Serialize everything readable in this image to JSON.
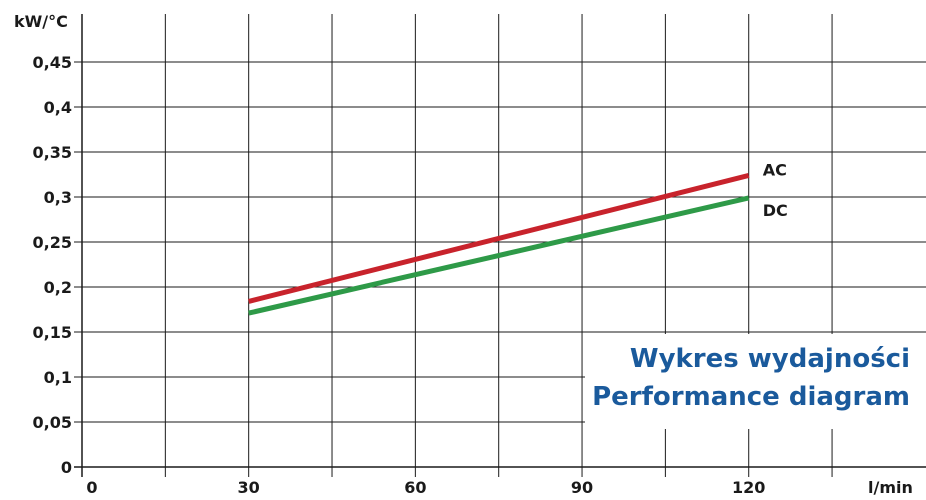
{
  "chart_data": {
    "type": "line",
    "title": "Wykres wydajności",
    "subtitle": "Performance diagram",
    "xlabel": "l/min",
    "ylabel": "kW/°C",
    "xlim": [
      0,
      150
    ],
    "ylim": [
      0,
      0.5
    ],
    "x_ticks": [
      0,
      30,
      60,
      90,
      120
    ],
    "x_tick_labels": [
      "0",
      "30",
      "60",
      "90",
      "120"
    ],
    "y_ticks": [
      0,
      0.05,
      0.1,
      0.15,
      0.2,
      0.25,
      0.3,
      0.35,
      0.4,
      0.45
    ],
    "y_tick_labels": [
      "0",
      "0,05",
      "0,1",
      "0,15",
      "0,2",
      "0,25",
      "0,3",
      "0,35",
      "0,4",
      "0,45"
    ],
    "x_grid": [
      15,
      30,
      45,
      60,
      75,
      90,
      105,
      120,
      135
    ],
    "y_grid": [
      0.05,
      0.1,
      0.15,
      0.2,
      0.25,
      0.3,
      0.35,
      0.4,
      0.45
    ],
    "grid": true,
    "series": [
      {
        "name": "AC",
        "color": "#c8232c",
        "x": [
          30,
          120
        ],
        "y": [
          0.184,
          0.324
        ]
      },
      {
        "name": "DC",
        "color": "#2e9a48",
        "x": [
          30,
          120
        ],
        "y": [
          0.171,
          0.299
        ]
      }
    ],
    "title_color": "#1a5a9c"
  }
}
